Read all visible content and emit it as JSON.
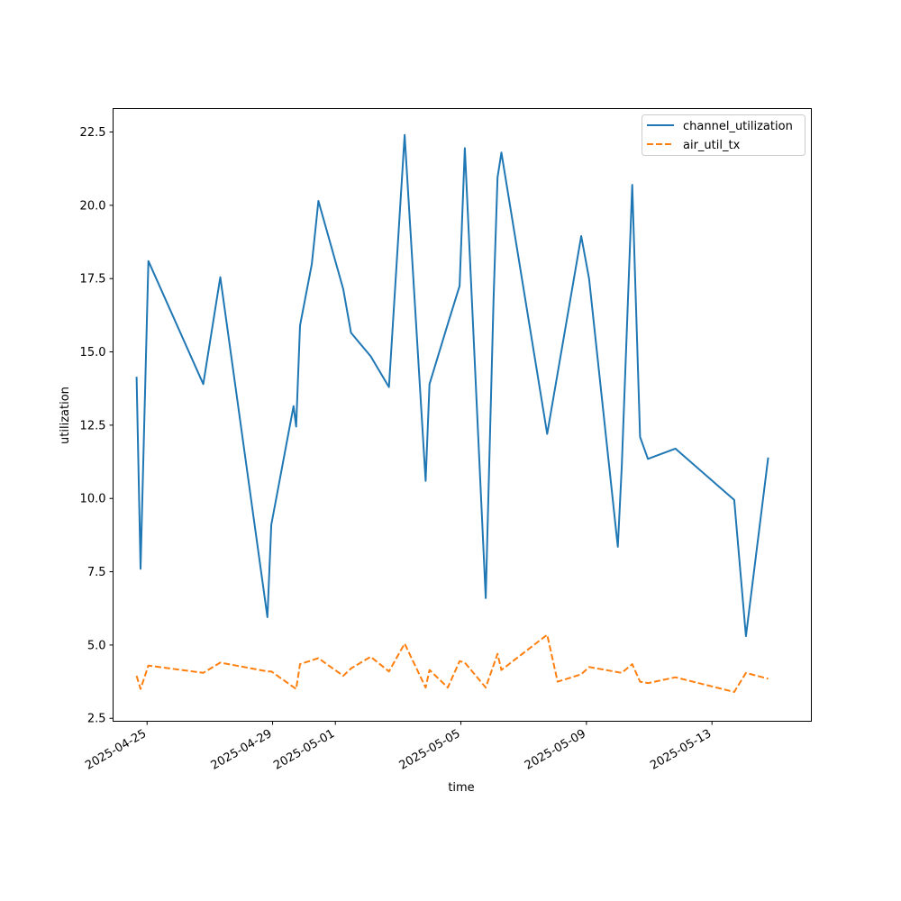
{
  "chart_data": {
    "type": "line",
    "title": "",
    "xlabel": "time",
    "ylabel": "utilization",
    "xlim": [
      "2025-04-23 22:00",
      "2025-05-16 04:00"
    ],
    "ylim": [
      2.4,
      23.3
    ],
    "xticks": [
      {
        "x": "2025-04-25",
        "label": "2025-04-25"
      },
      {
        "x": "2025-04-29",
        "label": "2025-04-29"
      },
      {
        "x": "2025-05-01",
        "label": "2025-05-01"
      },
      {
        "x": "2025-05-05",
        "label": "2025-05-05"
      },
      {
        "x": "2025-05-09",
        "label": "2025-05-09"
      },
      {
        "x": "2025-05-13",
        "label": "2025-05-13"
      }
    ],
    "yticks": [
      {
        "y": 2.5,
        "label": "2.5"
      },
      {
        "y": 5.0,
        "label": "5.0"
      },
      {
        "y": 7.5,
        "label": "7.5"
      },
      {
        "y": 10.0,
        "label": "10.0"
      },
      {
        "y": 12.5,
        "label": "12.5"
      },
      {
        "y": 15.0,
        "label": "15.0"
      },
      {
        "y": 17.5,
        "label": "17.5"
      },
      {
        "y": 20.0,
        "label": "20.0"
      },
      {
        "y": 22.5,
        "label": "22.5"
      }
    ],
    "grid": false,
    "legend": "top-right",
    "series": [
      {
        "name": "channel_utilization",
        "color": "#1f77b4",
        "style": "solid",
        "points": [
          [
            "2025-04-24 16:00",
            14.15
          ],
          [
            "2025-04-24 19:00",
            7.6
          ],
          [
            "2025-04-25 01:00",
            18.1
          ],
          [
            "2025-04-26 19:00",
            13.9
          ],
          [
            "2025-04-27 08:00",
            17.55
          ],
          [
            "2025-04-28 20:00",
            5.95
          ],
          [
            "2025-04-28 23:00",
            9.1
          ],
          [
            "2025-04-29 16:00",
            13.15
          ],
          [
            "2025-04-29 18:00",
            12.45
          ],
          [
            "2025-04-29 21:00",
            15.9
          ],
          [
            "2025-04-30 06:00",
            18.0
          ],
          [
            "2025-04-30 11:00",
            20.15
          ],
          [
            "2025-05-01 06:00",
            17.15
          ],
          [
            "2025-05-01 12:00",
            15.65
          ],
          [
            "2025-05-02 03:00",
            14.85
          ],
          [
            "2025-05-02 17:00",
            13.8
          ],
          [
            "2025-05-03 05:00",
            22.4
          ],
          [
            "2025-05-03 21:00",
            10.6
          ],
          [
            "2025-05-04 00:00",
            13.9
          ],
          [
            "2025-05-04 14:00",
            15.95
          ],
          [
            "2025-05-04 23:00",
            17.25
          ],
          [
            "2025-05-05 03:00",
            21.95
          ],
          [
            "2025-05-05 19:00",
            6.6
          ],
          [
            "2025-05-06 01:00",
            16.8
          ],
          [
            "2025-05-06 04:00",
            20.95
          ],
          [
            "2025-05-06 07:00",
            21.8
          ],
          [
            "2025-05-07 18:00",
            12.2
          ],
          [
            "2025-05-08 20:00",
            18.95
          ],
          [
            "2025-05-09 02:00",
            17.5
          ],
          [
            "2025-05-10 00:00",
            8.35
          ],
          [
            "2025-05-10 03:00",
            11.1
          ],
          [
            "2025-05-10 11:00",
            20.7
          ],
          [
            "2025-05-10 17:00",
            12.1
          ],
          [
            "2025-05-10 23:00",
            11.35
          ],
          [
            "2025-05-11 20:00",
            11.7
          ],
          [
            "2025-05-13 17:00",
            9.95
          ],
          [
            "2025-05-14 02:00",
            5.3
          ],
          [
            "2025-05-14 19:00",
            11.4
          ]
        ]
      },
      {
        "name": "air_util_tx",
        "color": "#ff7f0e",
        "style": "dashed",
        "points": [
          [
            "2025-04-24 16:00",
            3.95
          ],
          [
            "2025-04-24 19:00",
            3.5
          ],
          [
            "2025-04-25 01:00",
            4.3
          ],
          [
            "2025-04-26 19:00",
            4.05
          ],
          [
            "2025-04-27 08:00",
            4.4
          ],
          [
            "2025-04-28 20:00",
            4.1
          ],
          [
            "2025-04-28 23:00",
            4.1
          ],
          [
            "2025-04-29 18:00",
            3.5
          ],
          [
            "2025-04-29 21:00",
            4.35
          ],
          [
            "2025-04-30 11:00",
            4.55
          ],
          [
            "2025-05-01 06:00",
            3.95
          ],
          [
            "2025-05-01 12:00",
            4.2
          ],
          [
            "2025-05-02 03:00",
            4.6
          ],
          [
            "2025-05-02 17:00",
            4.1
          ],
          [
            "2025-05-03 05:00",
            5.05
          ],
          [
            "2025-05-03 21:00",
            3.55
          ],
          [
            "2025-05-04 00:00",
            4.15
          ],
          [
            "2025-05-04 14:00",
            3.55
          ],
          [
            "2025-05-04 23:00",
            4.45
          ],
          [
            "2025-05-05 03:00",
            4.4
          ],
          [
            "2025-05-05 19:00",
            3.55
          ],
          [
            "2025-05-06 04:00",
            4.7
          ],
          [
            "2025-05-06 07:00",
            4.15
          ],
          [
            "2025-05-07 18:00",
            5.35
          ],
          [
            "2025-05-08 02:00",
            3.75
          ],
          [
            "2025-05-08 20:00",
            4.0
          ],
          [
            "2025-05-09 02:00",
            4.25
          ],
          [
            "2025-05-10 03:00",
            4.05
          ],
          [
            "2025-05-10 11:00",
            4.35
          ],
          [
            "2025-05-10 17:00",
            3.75
          ],
          [
            "2025-05-10 23:00",
            3.7
          ],
          [
            "2025-05-11 20:00",
            3.9
          ],
          [
            "2025-05-13 17:00",
            3.4
          ],
          [
            "2025-05-14 02:00",
            4.05
          ],
          [
            "2025-05-14 19:00",
            3.85
          ]
        ]
      }
    ]
  }
}
